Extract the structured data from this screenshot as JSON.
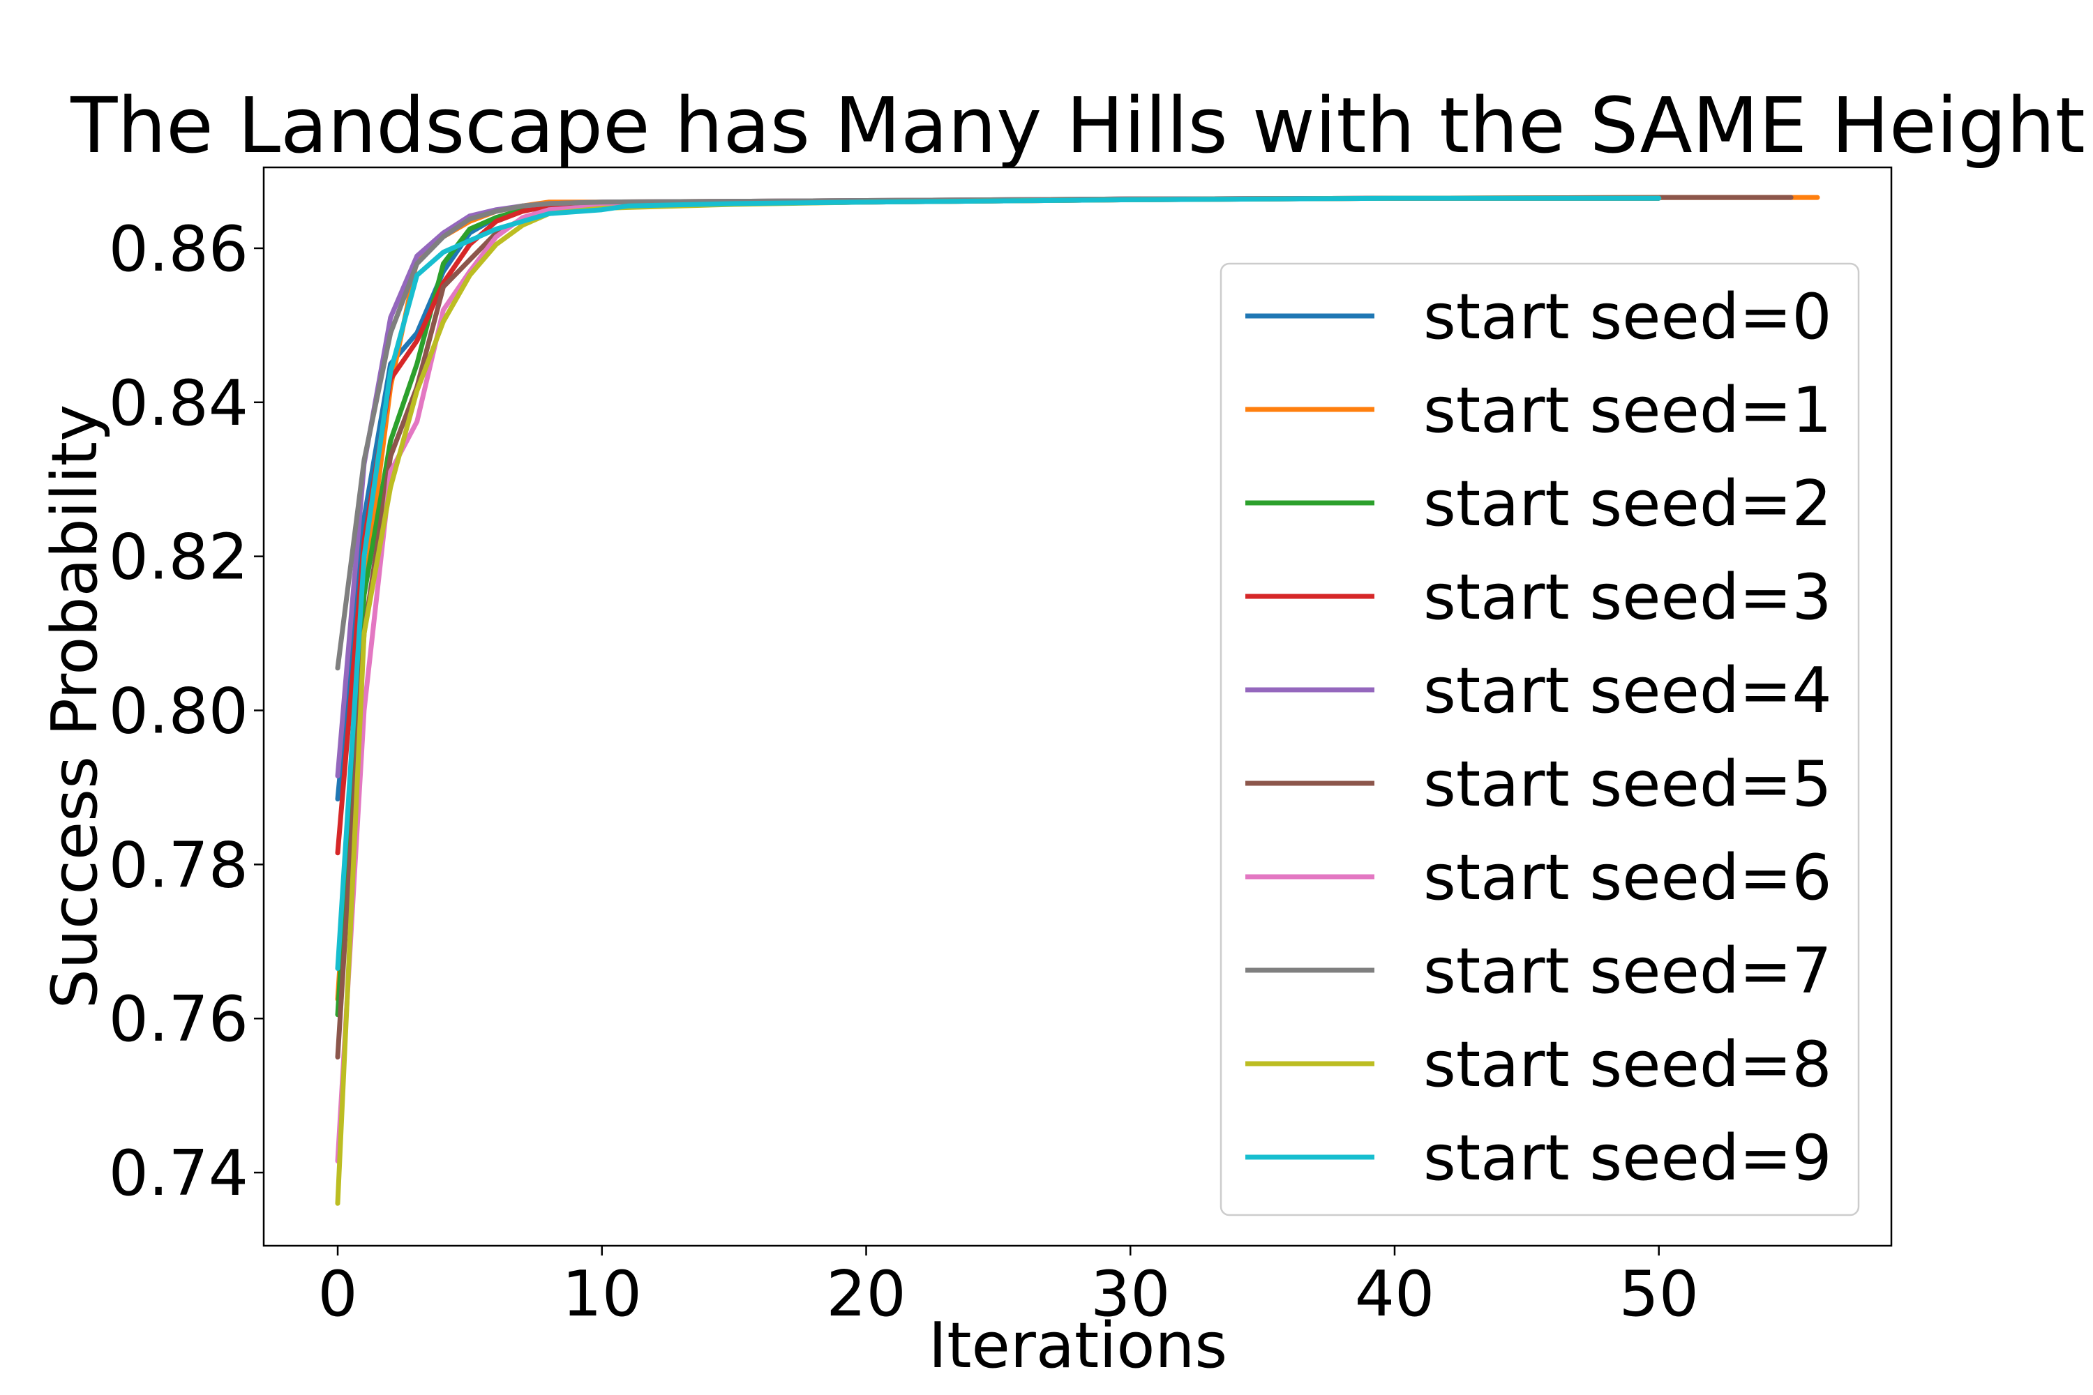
{
  "chart_data": {
    "type": "line",
    "title": "The Landscape has Many Hills with the SAME Height",
    "xlabel": "Iterations",
    "ylabel": "Success Probability",
    "xlim": [
      -2.8,
      58.8
    ],
    "ylim": [
      0.7305,
      0.8705
    ],
    "xticks": [
      0,
      10,
      20,
      30,
      40,
      50
    ],
    "yticks": [
      0.74,
      0.76,
      0.78,
      0.8,
      0.82,
      0.84,
      0.86
    ],
    "ytick_labels": [
      "0.74",
      "0.76",
      "0.78",
      "0.80",
      "0.82",
      "0.84",
      "0.86"
    ],
    "grid": false,
    "legend_position": "right",
    "series": [
      {
        "name": "start seed=0",
        "color": "#1f77b4",
        "x": [
          0,
          1,
          2,
          3,
          4,
          5,
          6,
          7,
          8,
          10,
          15,
          20,
          30,
          40,
          50
        ],
        "y": [
          0.7885,
          0.825,
          0.845,
          0.849,
          0.857,
          0.862,
          0.864,
          0.865,
          0.8655,
          0.8658,
          0.8661,
          0.8662,
          0.8664,
          0.8665,
          0.8665
        ]
      },
      {
        "name": "start seed=1",
        "color": "#ff7f0e",
        "x": [
          0,
          1,
          2,
          3,
          4,
          5,
          6,
          7,
          8,
          10,
          15,
          20,
          30,
          40,
          50,
          56
        ],
        "y": [
          0.7625,
          0.815,
          0.842,
          0.8585,
          0.8615,
          0.8635,
          0.8648,
          0.8655,
          0.866,
          0.866,
          0.8661,
          0.8662,
          0.8664,
          0.8665,
          0.8666,
          0.8666
        ]
      },
      {
        "name": "start seed=2",
        "color": "#2ca02c",
        "x": [
          0,
          1,
          2,
          3,
          4,
          5,
          6,
          7,
          8,
          10,
          15,
          20,
          30,
          40,
          50
        ],
        "y": [
          0.7605,
          0.815,
          0.835,
          0.845,
          0.858,
          0.8625,
          0.864,
          0.865,
          0.8652,
          0.8655,
          0.8658,
          0.866,
          0.8663,
          0.8665,
          0.8665
        ]
      },
      {
        "name": "start seed=3",
        "color": "#d62728",
        "x": [
          0,
          1,
          2,
          3,
          4,
          5,
          6,
          7,
          8,
          10,
          15,
          20,
          30,
          40,
          50
        ],
        "y": [
          0.7815,
          0.822,
          0.843,
          0.848,
          0.8555,
          0.8605,
          0.8635,
          0.8648,
          0.8655,
          0.8658,
          0.866,
          0.8661,
          0.8664,
          0.8665,
          0.8665
        ]
      },
      {
        "name": "start seed=4",
        "color": "#9467bd",
        "x": [
          0,
          1,
          2,
          3,
          4,
          5,
          6,
          7,
          8,
          10,
          15,
          20,
          30,
          40,
          50
        ],
        "y": [
          0.7915,
          0.832,
          0.851,
          0.859,
          0.862,
          0.8642,
          0.865,
          0.8655,
          0.8658,
          0.866,
          0.8661,
          0.8662,
          0.8664,
          0.8665,
          0.8665
        ]
      },
      {
        "name": "start seed=5",
        "color": "#8c564b",
        "x": [
          0,
          1,
          2,
          3,
          4,
          5,
          6,
          7,
          8,
          10,
          15,
          20,
          30,
          40,
          50,
          55
        ],
        "y": [
          0.755,
          0.81,
          0.833,
          0.842,
          0.855,
          0.8585,
          0.862,
          0.8638,
          0.865,
          0.8655,
          0.8658,
          0.866,
          0.8663,
          0.8665,
          0.8666,
          0.8666
        ]
      },
      {
        "name": "start seed=6",
        "color": "#e377c2",
        "x": [
          0,
          1,
          2,
          3,
          4,
          5,
          6,
          7,
          8,
          10,
          15,
          20,
          30,
          40,
          50
        ],
        "y": [
          0.7415,
          0.8,
          0.831,
          0.8375,
          0.852,
          0.857,
          0.8615,
          0.864,
          0.865,
          0.8655,
          0.8658,
          0.866,
          0.8663,
          0.8665,
          0.8665
        ]
      },
      {
        "name": "start seed=7",
        "color": "#7f7f7f",
        "x": [
          0,
          1,
          2,
          3,
          4,
          5,
          6,
          7,
          8,
          10,
          15,
          20,
          30,
          40,
          50
        ],
        "y": [
          0.8055,
          0.8325,
          0.849,
          0.858,
          0.8615,
          0.8638,
          0.8648,
          0.8655,
          0.8658,
          0.866,
          0.8661,
          0.8662,
          0.8664,
          0.8665,
          0.8665
        ]
      },
      {
        "name": "start seed=8",
        "color": "#bcbd22",
        "x": [
          0,
          1,
          2,
          3,
          4,
          5,
          6,
          7,
          8,
          10,
          15,
          20,
          30,
          40,
          50
        ],
        "y": [
          0.736,
          0.81,
          0.829,
          0.8415,
          0.8505,
          0.8565,
          0.8605,
          0.863,
          0.8645,
          0.8652,
          0.8657,
          0.866,
          0.8663,
          0.8665,
          0.8665
        ]
      },
      {
        "name": "start seed=9",
        "color": "#17becf",
        "x": [
          0,
          1,
          2,
          3,
          4,
          5,
          6,
          7,
          8,
          10,
          11,
          15,
          20,
          30,
          40,
          50
        ],
        "y": [
          0.7665,
          0.82,
          0.844,
          0.8565,
          0.8595,
          0.861,
          0.8625,
          0.8635,
          0.8645,
          0.865,
          0.8655,
          0.8658,
          0.866,
          0.8663,
          0.8665,
          0.8665
        ]
      }
    ]
  }
}
